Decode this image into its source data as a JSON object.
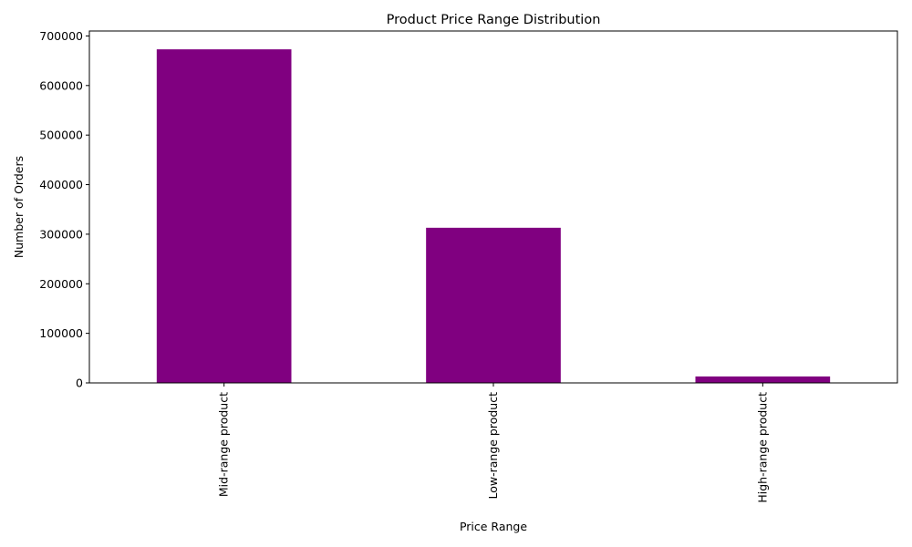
{
  "chart_data": {
    "type": "bar",
    "title": "Product Price Range Distribution",
    "xlabel": "Price Range",
    "ylabel": "Number of Orders",
    "categories": [
      "Mid-range product",
      "Low-range product",
      "High-range product"
    ],
    "values": [
      673000,
      313000,
      13000
    ],
    "ylim": [
      0,
      710000
    ],
    "yticks": [
      0,
      100000,
      200000,
      300000,
      400000,
      500000,
      600000,
      700000
    ],
    "bar_color": "#800080",
    "grid": false,
    "legend": "none"
  }
}
